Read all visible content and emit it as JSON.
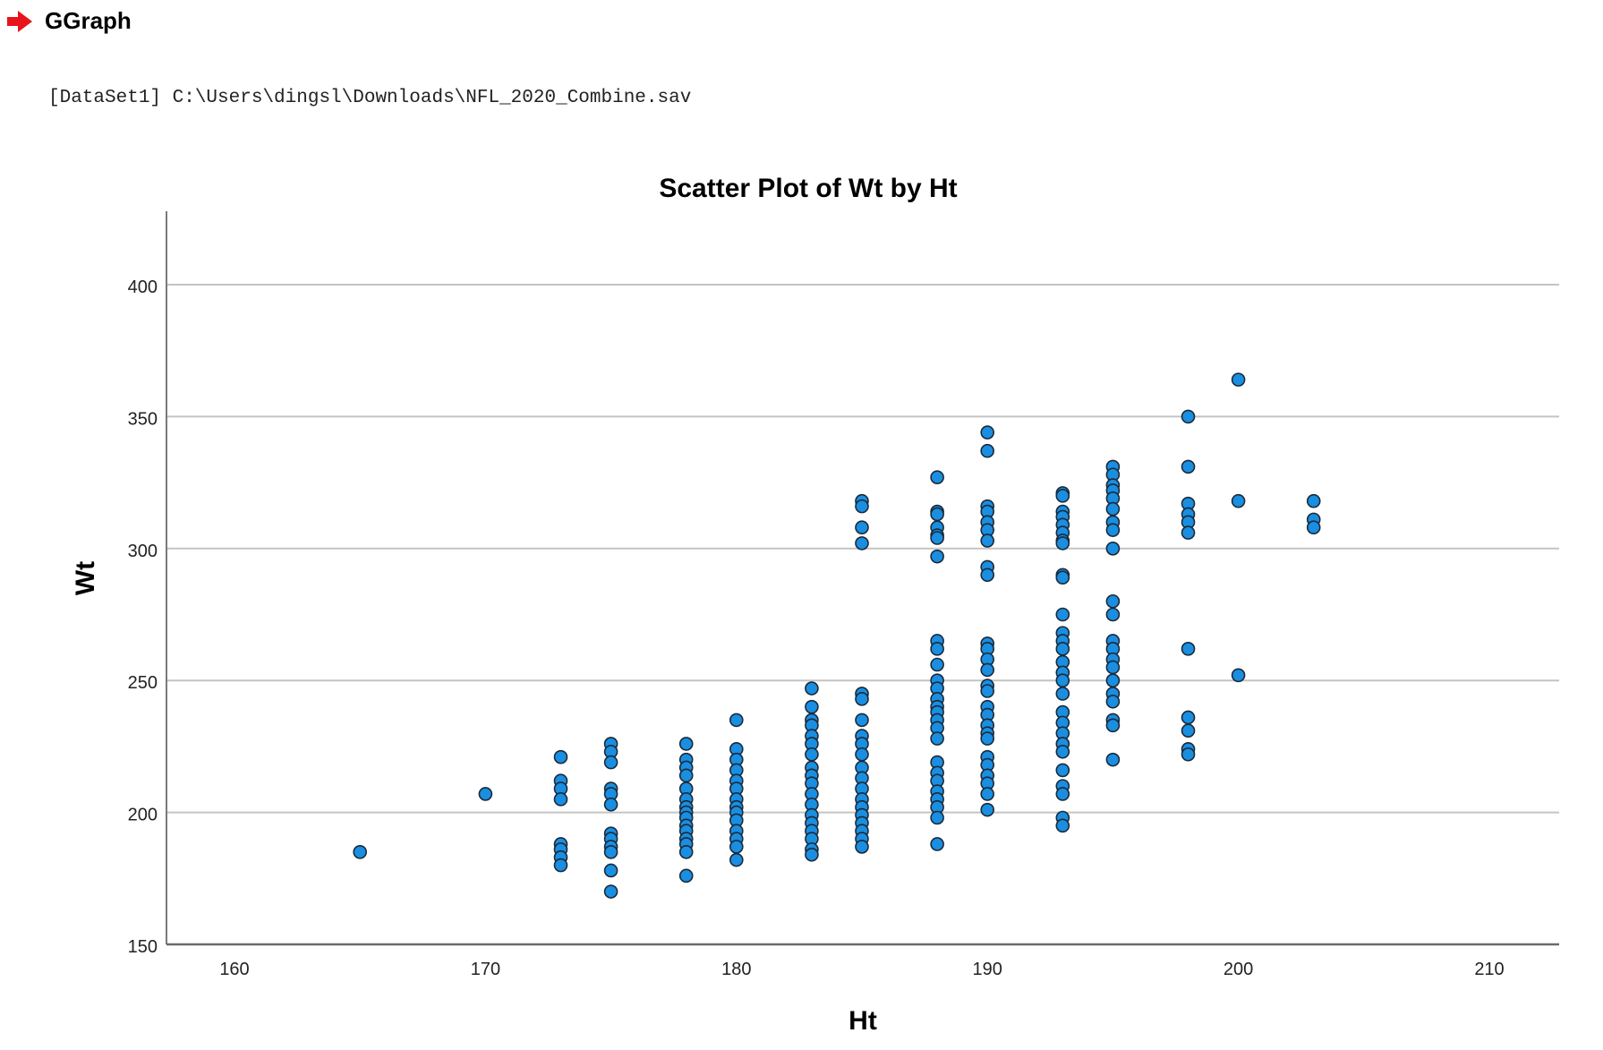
{
  "header": {
    "icon": "red-arrow-right-icon",
    "title": "GGraph",
    "accent_color": "#e8141b"
  },
  "dataset": {
    "label": "[DataSet1] C:\\Users\\dingsl\\Downloads\\NFL_2020_Combine.sav"
  },
  "chart_data": {
    "type": "scatter",
    "title": "Scatter Plot of Wt by Ht",
    "xlabel": "Ht",
    "ylabel": "Wt",
    "xlim": [
      157.3,
      212.8
    ],
    "ylim": [
      150,
      425
    ],
    "x_ticks": [
      160,
      170,
      180,
      190,
      200,
      210
    ],
    "y_ticks": [
      150,
      200,
      250,
      300,
      350,
      400
    ],
    "grid": "horizontal",
    "legend": "none",
    "marker_color": "#1a8ee0",
    "marker_edge": "#1a2a3a",
    "points": [
      [
        165,
        185
      ],
      [
        170,
        207
      ],
      [
        173,
        221
      ],
      [
        173,
        212
      ],
      [
        173,
        209
      ],
      [
        173,
        205
      ],
      [
        173,
        188
      ],
      [
        173,
        186
      ],
      [
        173,
        183
      ],
      [
        173,
        180
      ],
      [
        175,
        226
      ],
      [
        175,
        223
      ],
      [
        175,
        219
      ],
      [
        175,
        209
      ],
      [
        175,
        207
      ],
      [
        175,
        203
      ],
      [
        175,
        192
      ],
      [
        175,
        190
      ],
      [
        175,
        187
      ],
      [
        175,
        185
      ],
      [
        175,
        178
      ],
      [
        175,
        170
      ],
      [
        178,
        226
      ],
      [
        178,
        220
      ],
      [
        178,
        217
      ],
      [
        178,
        214
      ],
      [
        178,
        209
      ],
      [
        178,
        205
      ],
      [
        178,
        202
      ],
      [
        178,
        200
      ],
      [
        178,
        198
      ],
      [
        178,
        195
      ],
      [
        178,
        193
      ],
      [
        178,
        190
      ],
      [
        178,
        188
      ],
      [
        178,
        185
      ],
      [
        178,
        176
      ],
      [
        180,
        235
      ],
      [
        180,
        224
      ],
      [
        180,
        220
      ],
      [
        180,
        216
      ],
      [
        180,
        212
      ],
      [
        180,
        209
      ],
      [
        180,
        205
      ],
      [
        180,
        202
      ],
      [
        180,
        200
      ],
      [
        180,
        197
      ],
      [
        180,
        193
      ],
      [
        180,
        190
      ],
      [
        180,
        187
      ],
      [
        180,
        182
      ],
      [
        183,
        247
      ],
      [
        183,
        240
      ],
      [
        183,
        235
      ],
      [
        183,
        233
      ],
      [
        183,
        229
      ],
      [
        183,
        226
      ],
      [
        183,
        222
      ],
      [
        183,
        217
      ],
      [
        183,
        214
      ],
      [
        183,
        211
      ],
      [
        183,
        207
      ],
      [
        183,
        203
      ],
      [
        183,
        199
      ],
      [
        183,
        196
      ],
      [
        183,
        193
      ],
      [
        183,
        190
      ],
      [
        183,
        186
      ],
      [
        183,
        184
      ],
      [
        185,
        318
      ],
      [
        185,
        316
      ],
      [
        185,
        308
      ],
      [
        185,
        302
      ],
      [
        185,
        245
      ],
      [
        185,
        243
      ],
      [
        185,
        235
      ],
      [
        185,
        229
      ],
      [
        185,
        226
      ],
      [
        185,
        222
      ],
      [
        185,
        217
      ],
      [
        185,
        213
      ],
      [
        185,
        209
      ],
      [
        185,
        205
      ],
      [
        185,
        202
      ],
      [
        185,
        199
      ],
      [
        185,
        196
      ],
      [
        185,
        193
      ],
      [
        185,
        190
      ],
      [
        185,
        187
      ],
      [
        188,
        327
      ],
      [
        188,
        314
      ],
      [
        188,
        313
      ],
      [
        188,
        308
      ],
      [
        188,
        305
      ],
      [
        188,
        304
      ],
      [
        188,
        297
      ],
      [
        188,
        265
      ],
      [
        188,
        262
      ],
      [
        188,
        256
      ],
      [
        188,
        250
      ],
      [
        188,
        247
      ],
      [
        188,
        243
      ],
      [
        188,
        240
      ],
      [
        188,
        238
      ],
      [
        188,
        235
      ],
      [
        188,
        232
      ],
      [
        188,
        228
      ],
      [
        188,
        219
      ],
      [
        188,
        215
      ],
      [
        188,
        212
      ],
      [
        188,
        208
      ],
      [
        188,
        205
      ],
      [
        188,
        202
      ],
      [
        188,
        198
      ],
      [
        188,
        188
      ],
      [
        190,
        344
      ],
      [
        190,
        337
      ],
      [
        190,
        316
      ],
      [
        190,
        314
      ],
      [
        190,
        310
      ],
      [
        190,
        307
      ],
      [
        190,
        303
      ],
      [
        190,
        293
      ],
      [
        190,
        290
      ],
      [
        190,
        264
      ],
      [
        190,
        262
      ],
      [
        190,
        258
      ],
      [
        190,
        254
      ],
      [
        190,
        248
      ],
      [
        190,
        246
      ],
      [
        190,
        240
      ],
      [
        190,
        237
      ],
      [
        190,
        233
      ],
      [
        190,
        230
      ],
      [
        190,
        228
      ],
      [
        190,
        221
      ],
      [
        190,
        218
      ],
      [
        190,
        214
      ],
      [
        190,
        211
      ],
      [
        190,
        207
      ],
      [
        190,
        201
      ],
      [
        193,
        321
      ],
      [
        193,
        320
      ],
      [
        193,
        314
      ],
      [
        193,
        312
      ],
      [
        193,
        309
      ],
      [
        193,
        306
      ],
      [
        193,
        303
      ],
      [
        193,
        302
      ],
      [
        193,
        290
      ],
      [
        193,
        289
      ],
      [
        193,
        275
      ],
      [
        193,
        268
      ],
      [
        193,
        265
      ],
      [
        193,
        262
      ],
      [
        193,
        257
      ],
      [
        193,
        253
      ],
      [
        193,
        250
      ],
      [
        193,
        245
      ],
      [
        193,
        238
      ],
      [
        193,
        234
      ],
      [
        193,
        230
      ],
      [
        193,
        226
      ],
      [
        193,
        223
      ],
      [
        193,
        216
      ],
      [
        193,
        210
      ],
      [
        193,
        207
      ],
      [
        193,
        198
      ],
      [
        193,
        195
      ],
      [
        195,
        331
      ],
      [
        195,
        328
      ],
      [
        195,
        324
      ],
      [
        195,
        322
      ],
      [
        195,
        319
      ],
      [
        195,
        315
      ],
      [
        195,
        310
      ],
      [
        195,
        307
      ],
      [
        195,
        300
      ],
      [
        195,
        280
      ],
      [
        195,
        275
      ],
      [
        195,
        265
      ],
      [
        195,
        262
      ],
      [
        195,
        258
      ],
      [
        195,
        255
      ],
      [
        195,
        250
      ],
      [
        195,
        245
      ],
      [
        195,
        242
      ],
      [
        195,
        235
      ],
      [
        195,
        233
      ],
      [
        195,
        220
      ],
      [
        198,
        350
      ],
      [
        198,
        331
      ],
      [
        198,
        317
      ],
      [
        198,
        313
      ],
      [
        198,
        310
      ],
      [
        198,
        306
      ],
      [
        198,
        262
      ],
      [
        198,
        236
      ],
      [
        198,
        231
      ],
      [
        198,
        224
      ],
      [
        198,
        222
      ],
      [
        200,
        364
      ],
      [
        200,
        318
      ],
      [
        200,
        252
      ],
      [
        203,
        318
      ],
      [
        203,
        311
      ],
      [
        203,
        308
      ]
    ]
  }
}
